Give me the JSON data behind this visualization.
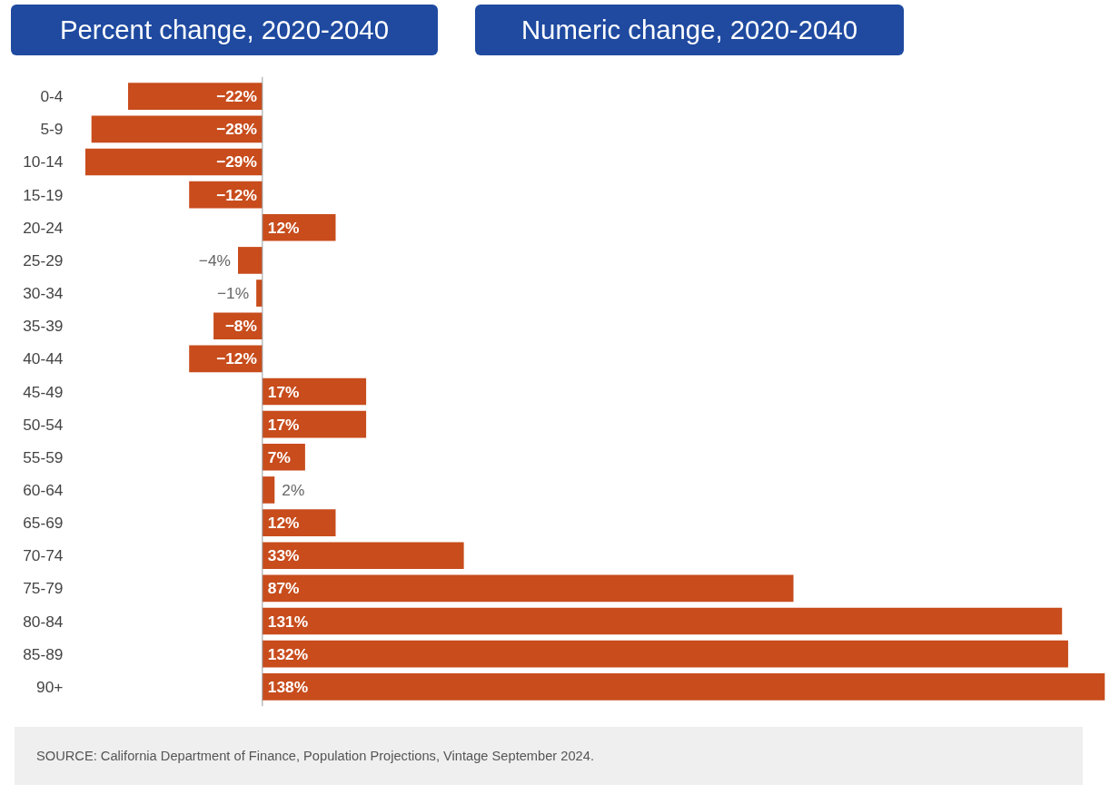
{
  "chart_data": {
    "type": "bar",
    "orientation": "horizontal",
    "categories": [
      "0-4",
      "5-9",
      "10-14",
      "15-19",
      "20-24",
      "25-29",
      "30-34",
      "35-39",
      "40-44",
      "45-49",
      "50-54",
      "55-59",
      "60-64",
      "65-69",
      "70-74",
      "75-79",
      "80-84",
      "85-89",
      "90+"
    ],
    "values": [
      -22,
      -28,
      -29,
      -12,
      12,
      -4,
      -1,
      -8,
      -12,
      17,
      17,
      7,
      2,
      12,
      33,
      87,
      131,
      132,
      138
    ],
    "value_labels": [
      "−22%",
      "−28%",
      "−29%",
      "−12%",
      "12%",
      "−4%",
      "−1%",
      "−8%",
      "−12%",
      "17%",
      "17%",
      "7%",
      "2%",
      "12%",
      "33%",
      "87%",
      "131%",
      "132%",
      "138%"
    ],
    "color": "#c84c1c",
    "tick_labels": "y",
    "annotations": [
      "Percent change, 2020-2040",
      "Numeric change, 2020-2040",
      "SOURCE: California Department of Finance, Population Projections, Vintage September 2024."
    ]
  }
}
